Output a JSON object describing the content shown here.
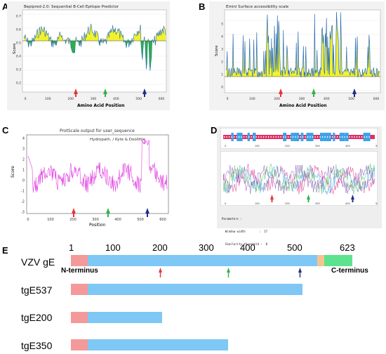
{
  "panels": {
    "A": {
      "letter": "A",
      "title": "Bepipred-2.0: Sequential B-Cell Epitope Predictor",
      "xlabel": "Amino Acid Position",
      "ylabel": "Score",
      "yticks": [
        "0.7",
        "0.6",
        "0.5",
        "0.4",
        "0.3",
        "0.2"
      ],
      "xticks": [
        "0",
        "100",
        "200",
        "300",
        "400",
        "500",
        "600"
      ]
    },
    "B": {
      "letter": "B",
      "title": "Emini Surface accessibility scale",
      "xlabel": "Amino Acid Position",
      "ylabel": "Score",
      "yticks": [
        "5",
        "4",
        "3",
        "2",
        "1",
        "0"
      ],
      "xticks": [
        "0",
        "100",
        "200",
        "300",
        "400",
        "500",
        "600"
      ]
    },
    "C": {
      "letter": "C",
      "title": "ProtScale output for user_sequence",
      "legend": "Hydropath. / Kyte & Doolittle",
      "xlabel": "Position",
      "ylabel": "Score",
      "yticks": [
        "4",
        "3",
        "2",
        "1",
        "0",
        "-1",
        "-2",
        "-3"
      ],
      "xticks": [
        "0",
        "100",
        "200",
        "300",
        "400",
        "500",
        "600"
      ]
    },
    "D": {
      "letter": "D",
      "xticks": [
        "0",
        "100",
        "200",
        "300",
        "400",
        "500"
      ],
      "params_lines": [
        "Parameters :",
        "  Window width        :  17",
        "  Similarity threshold :  8",
        "  Number of states     :  4"
      ]
    },
    "E": {
      "letter": "E",
      "ruler": [
        "1",
        "100",
        "200",
        "300",
        "400",
        "500",
        "623"
      ],
      "constructs": [
        "VZV gE",
        "tgE537",
        "tgE200",
        "tgE350"
      ],
      "n_terminus": "N-terminus",
      "c_terminus": "C-terminus"
    }
  },
  "colors": {
    "red_arrow": "#e8333a",
    "green_arrow": "#2fb34a",
    "blue_arrow": "#1f2e8a",
    "signal_peptide": "#f4999a",
    "ectodomain": "#7fc7f5",
    "transmembrane": "#f6c58f",
    "cytoplasmic": "#5de38e",
    "epitope_fill": "#f2f22a",
    "non_epitope_fill": "#2ab23a",
    "score_line": "#2a6db5",
    "hydropathy_line": "#e040e0"
  }
}
